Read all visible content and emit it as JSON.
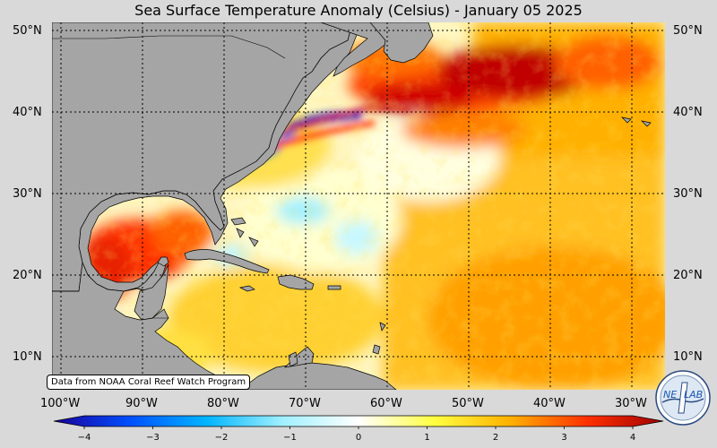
{
  "title": "Sea Surface Temperature Anomaly (Celsius) - January 05 2025",
  "latitude_labels": [
    "50°N",
    "40°N",
    "30°N",
    "20°N",
    "10°N"
  ],
  "longitude_labels": [
    "100°W",
    "90°W",
    "80°W",
    "70°W",
    "60°W",
    "50°W",
    "40°W",
    "30°W"
  ],
  "credit": "Data from NOAA Coral Reef Watch Program",
  "colorbar": {
    "ticks": [
      "−4",
      "−3",
      "−2",
      "−1",
      "0",
      "1",
      "2",
      "3",
      "4"
    ],
    "min": -4,
    "max": 4,
    "colors": [
      "#1a0099",
      "#0050ff",
      "#00b4ff",
      "#a0f0ff",
      "#ffffff",
      "#ffff40",
      "#ffb000",
      "#ff3000",
      "#a00000"
    ]
  },
  "map": {
    "land_color": "#a5a5a5",
    "gridlines": "dotted",
    "lat_range": [
      6,
      51
    ],
    "lon_range": [
      -101,
      -26
    ]
  },
  "logo": {
    "text_left": "NE",
    "text_right": "LAB",
    "icon": "lab-logo-icon"
  }
}
